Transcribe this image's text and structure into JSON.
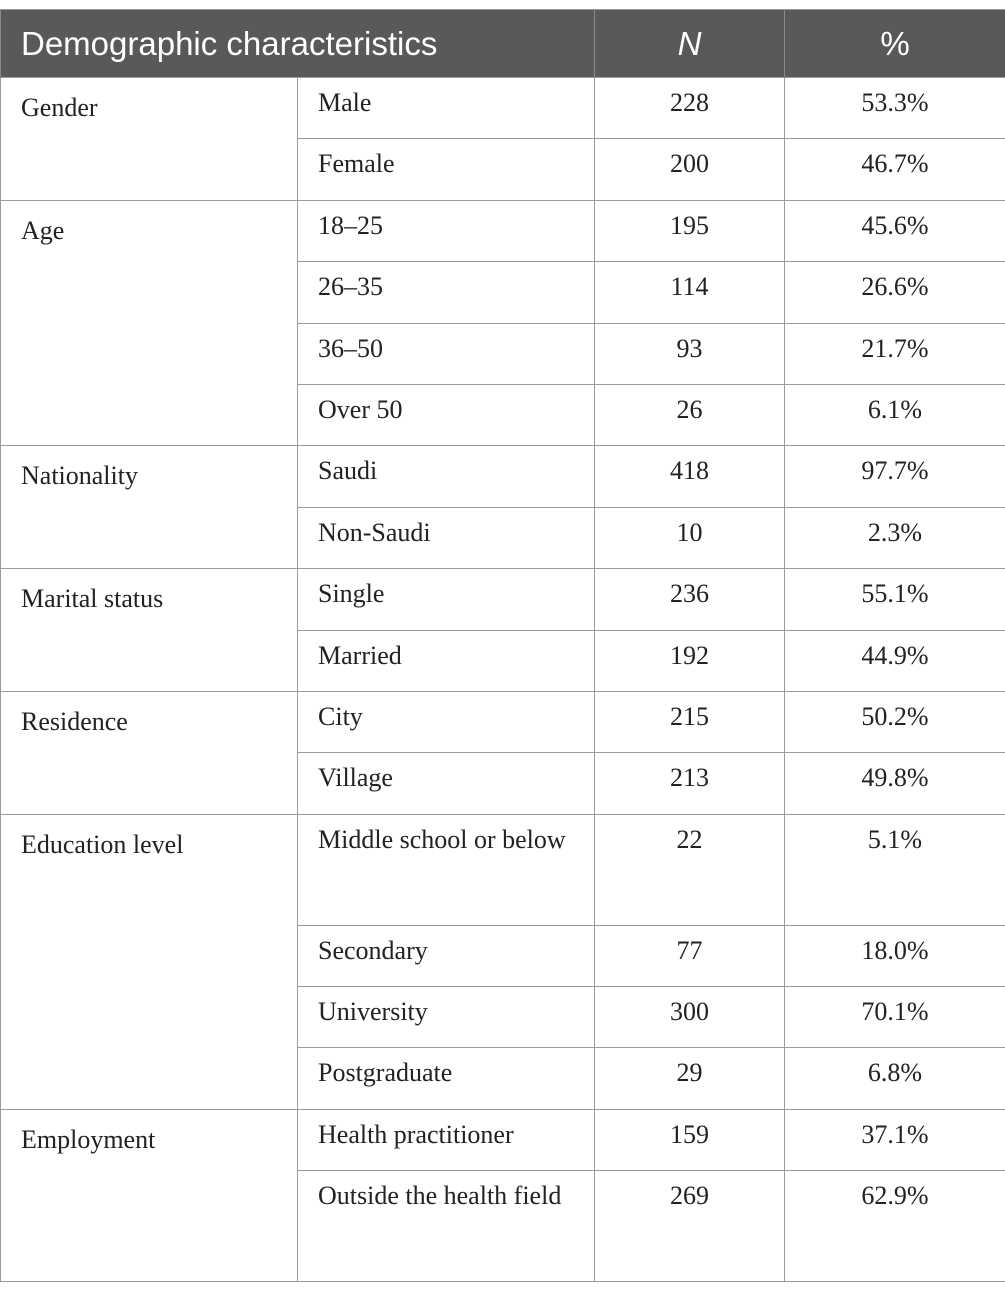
{
  "table": {
    "headers": {
      "characteristic": "Demographic characteristics",
      "n": "N",
      "pct": "%"
    },
    "groups": [
      {
        "label": "Gender",
        "rows": [
          {
            "sub": "Male",
            "n": "228",
            "pct": "53.3%"
          },
          {
            "sub": "Female",
            "n": "200",
            "pct": "46.7%"
          }
        ]
      },
      {
        "label": "Age",
        "rows": [
          {
            "sub": "18–25",
            "n": "195",
            "pct": "45.6%"
          },
          {
            "sub": "26–35",
            "n": "114",
            "pct": "26.6%"
          },
          {
            "sub": "36–50",
            "n": "93",
            "pct": "21.7%"
          },
          {
            "sub": "Over 50",
            "n": "26",
            "pct": "6.1%"
          }
        ]
      },
      {
        "label": "Nationality",
        "rows": [
          {
            "sub": "Saudi",
            "n": "418",
            "pct": "97.7%"
          },
          {
            "sub": "Non-Saudi",
            "n": "10",
            "pct": "2.3%"
          }
        ]
      },
      {
        "label": "Marital status",
        "rows": [
          {
            "sub": "Single",
            "n": "236",
            "pct": "55.1%"
          },
          {
            "sub": "Married",
            "n": "192",
            "pct": "44.9%"
          }
        ]
      },
      {
        "label": "Residence",
        "rows": [
          {
            "sub": "City",
            "n": "215",
            "pct": "50.2%"
          },
          {
            "sub": "Village",
            "n": "213",
            "pct": "49.8%"
          }
        ]
      },
      {
        "label": "Education level",
        "rows": [
          {
            "sub": "Middle school or below",
            "n": "22",
            "pct": "5.1%"
          },
          {
            "sub": "Secondary",
            "n": "77",
            "pct": "18.0%"
          },
          {
            "sub": "University",
            "n": "300",
            "pct": "70.1%"
          },
          {
            "sub": "Postgraduate",
            "n": "29",
            "pct": "6.8%"
          }
        ]
      },
      {
        "label": "Employment",
        "rows": [
          {
            "sub": "Health practitioner",
            "n": "159",
            "pct": "37.1%"
          },
          {
            "sub": "Outside the health field",
            "n": "269",
            "pct": "62.9%"
          }
        ]
      }
    ]
  }
}
